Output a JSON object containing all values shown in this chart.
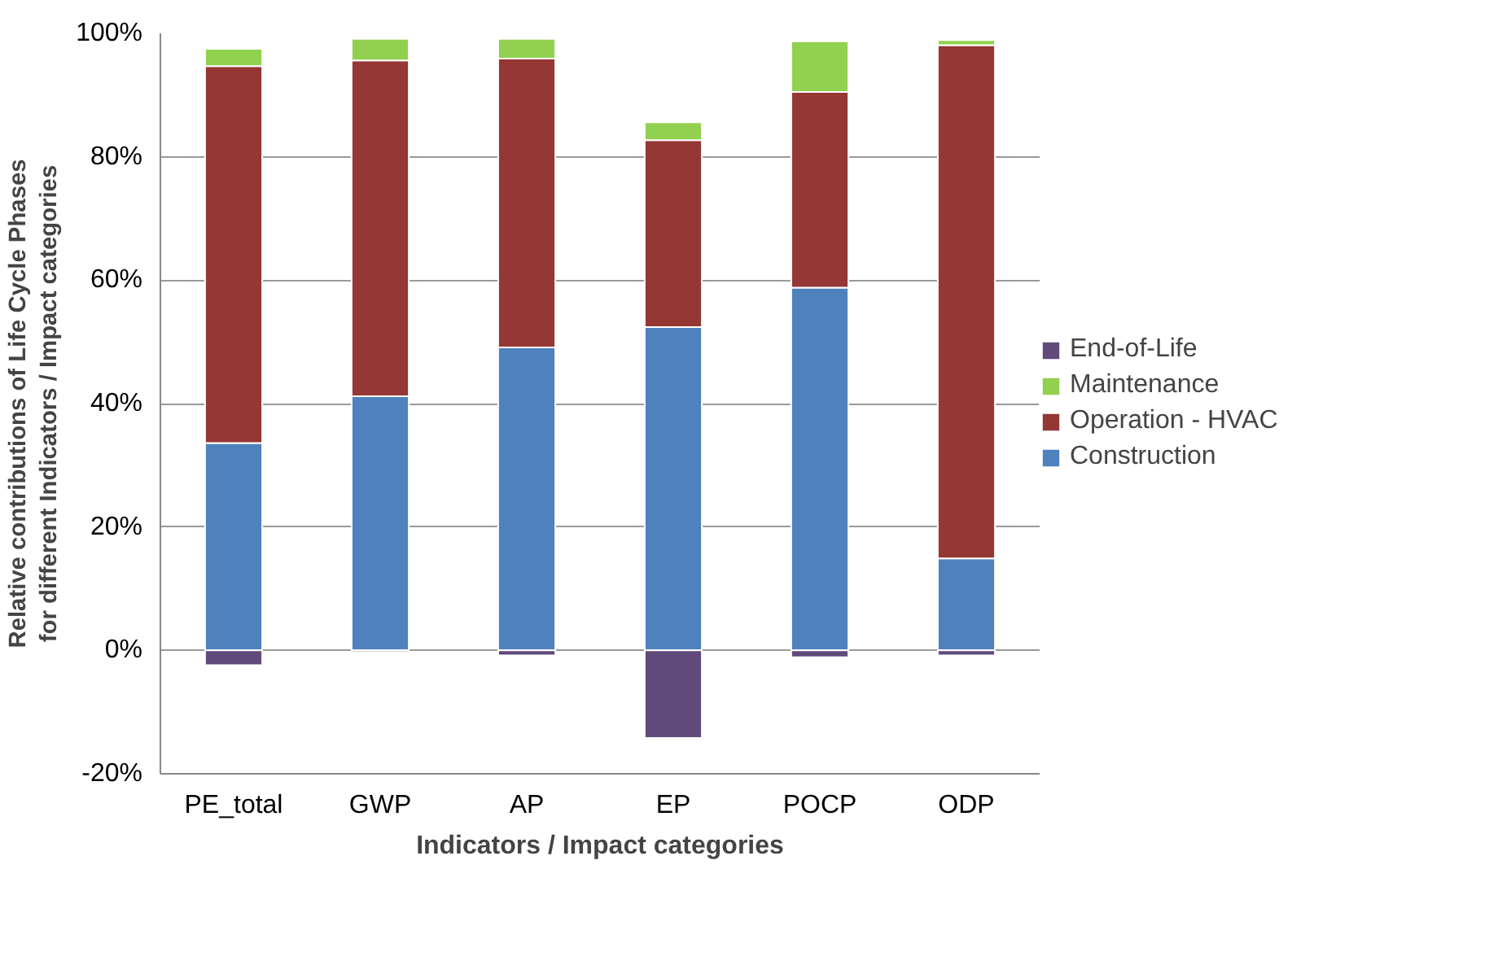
{
  "chart_data": {
    "type": "bar",
    "stacked": true,
    "xlabel": "Indicators / Impact categories",
    "ylabel": "Relative contributions of Life Cycle Phases for different Indicators / Impact categories",
    "categories": [
      "PE_total",
      "GWP",
      "AP",
      "EP",
      "POCP",
      "ODP"
    ],
    "series": [
      {
        "name": "Construction",
        "color": "#4f81bd",
        "values": [
          33.6,
          41.2,
          49.1,
          52.4,
          58.8,
          14.9
        ]
      },
      {
        "name": "Operation - HVAC",
        "color": "#953735",
        "values": [
          61.1,
          54.4,
          46.8,
          30.3,
          31.7,
          83.2
        ]
      },
      {
        "name": "Maintenance",
        "color": "#92d050",
        "values": [
          2.8,
          3.5,
          3.2,
          2.9,
          8.2,
          0.8
        ]
      },
      {
        "name": "End-of-Life",
        "color": "#604a7b",
        "values": [
          -2.4,
          -0.3,
          -0.8,
          -14.2,
          -1.1,
          -0.8
        ]
      }
    ],
    "ylim": [
      -20,
      100
    ],
    "yticks": [
      {
        "value": -20,
        "label": "-20%"
      },
      {
        "value": 0,
        "label": "0%"
      },
      {
        "value": 20,
        "label": "20%"
      },
      {
        "value": 40,
        "label": "40%"
      },
      {
        "value": 60,
        "label": "60%"
      },
      {
        "value": 80,
        "label": "80%"
      },
      {
        "value": 100,
        "label": "100%"
      }
    ],
    "grid": "y",
    "legend": "right"
  }
}
